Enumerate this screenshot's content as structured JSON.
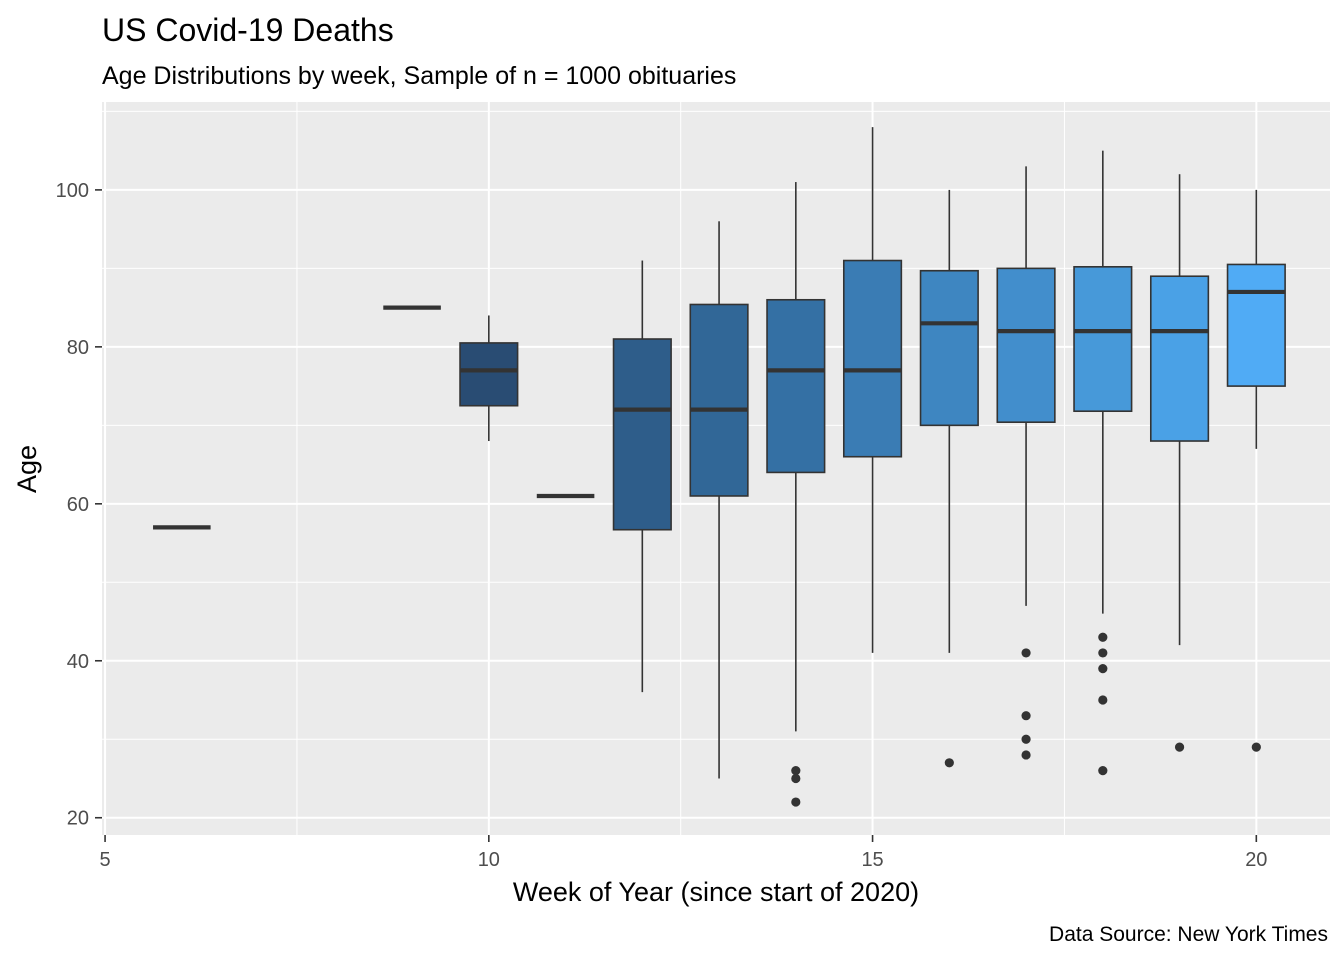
{
  "chart_data": {
    "type": "boxplot",
    "title": "US Covid-19 Deaths",
    "subtitle": "Age Distributions by week, Sample of n = 1000 obituaries",
    "xlabel": "Week of Year (since start of 2020)",
    "ylabel": "Age",
    "caption": "Data Source: New York Times",
    "xlim": [
      4.96,
      20.96
    ],
    "ylim": [
      17.8,
      111.2
    ],
    "x_major_ticks": [
      5,
      10,
      15,
      20
    ],
    "x_minor_ticks": [
      7.5,
      12.5,
      17.5
    ],
    "y_major_ticks": [
      20,
      40,
      60,
      80,
      100
    ],
    "y_minor_ticks": [
      30,
      50,
      70,
      90,
      110
    ],
    "grid": true,
    "panel_background": "#EBEBEB",
    "outlier_color": "#333333",
    "boxes": [
      {
        "week": 6,
        "lower": 57,
        "q1": 57,
        "median": 57,
        "q3": 57,
        "upper": 57,
        "outliers": [],
        "fill": "#26496F"
      },
      {
        "week": 9,
        "lower": 85,
        "q1": 85,
        "median": 85,
        "q3": 85,
        "upper": 85,
        "outliers": [],
        "fill": "#27476C"
      },
      {
        "week": 10,
        "lower": 68,
        "q1": 72.5,
        "median": 77,
        "q3": 80.5,
        "upper": 84,
        "outliers": [],
        "fill": "#294C73"
      },
      {
        "week": 11,
        "lower": 61,
        "q1": 61,
        "median": 61,
        "q3": 61,
        "upper": 61,
        "outliers": [],
        "fill": "#2B5480"
      },
      {
        "week": 12,
        "lower": 36,
        "q1": 56.7,
        "median": 72,
        "q3": 81,
        "upper": 91,
        "outliers": [],
        "fill": "#2E5D8A"
      },
      {
        "week": 13,
        "lower": 25,
        "q1": 61,
        "median": 72,
        "q3": 85.4,
        "upper": 96,
        "outliers": [],
        "fill": "#316797"
      },
      {
        "week": 14,
        "lower": 31,
        "q1": 64,
        "median": 77,
        "q3": 86,
        "upper": 101,
        "outliers": [
          26,
          25,
          22
        ],
        "fill": "#3470A4"
      },
      {
        "week": 15,
        "lower": 41,
        "q1": 66,
        "median": 77,
        "q3": 91,
        "upper": 108,
        "outliers": [],
        "fill": "#3A7CB4"
      },
      {
        "week": 16,
        "lower": 41,
        "q1": 70,
        "median": 83,
        "q3": 89.7,
        "upper": 100,
        "outliers": [
          27
        ],
        "fill": "#3E86C1"
      },
      {
        "week": 17,
        "lower": 47,
        "q1": 70.4,
        "median": 82,
        "q3": 90,
        "upper": 103,
        "outliers": [
          41,
          33,
          30,
          28
        ],
        "fill": "#428ECC"
      },
      {
        "week": 18,
        "lower": 46,
        "q1": 71.8,
        "median": 82,
        "q3": 90.2,
        "upper": 105,
        "outliers": [
          43,
          41,
          39,
          35,
          26
        ],
        "fill": "#4799D9"
      },
      {
        "week": 19,
        "lower": 42,
        "q1": 68,
        "median": 82,
        "q3": 89,
        "upper": 102,
        "outliers": [
          29
        ],
        "fill": "#4AA1E6"
      },
      {
        "week": 20,
        "lower": 67,
        "q1": 75,
        "median": 87,
        "q3": 90.5,
        "upper": 100,
        "outliers": [
          29
        ],
        "fill": "#50ABF5"
      }
    ]
  }
}
